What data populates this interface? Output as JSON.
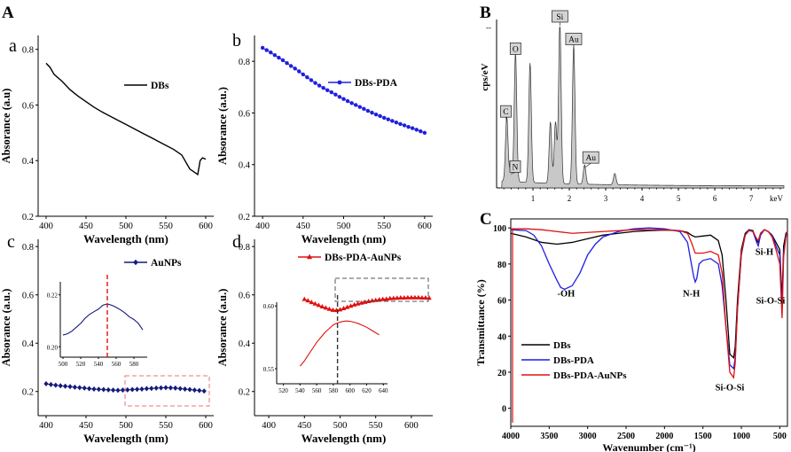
{
  "figure": {
    "panel_labels": {
      "A": "A",
      "B": "B",
      "C": "C"
    },
    "colors": {
      "black": "#000000",
      "blue": "#1f1fe0",
      "navy": "#141a7a",
      "red": "#e01010",
      "pink_dash": "#f07070",
      "gray_fill": "#c8c8c8",
      "gray_box": "#555555"
    }
  },
  "chart_data": [
    {
      "id": "a",
      "sublabel": "a",
      "type": "line",
      "xlabel": "Wavelength (nm)",
      "ylabel": "Absorance (a.u)",
      "xlim": [
        390,
        610
      ],
      "ylim": [
        0.2,
        0.85
      ],
      "xticks": [
        400,
        450,
        500,
        550,
        600
      ],
      "yticks": [
        0.2,
        0.4,
        0.6,
        0.8
      ],
      "series": [
        {
          "name": "DBs",
          "color": "#000000",
          "x": [
            400,
            405,
            410,
            420,
            430,
            440,
            450,
            460,
            470,
            480,
            490,
            500,
            510,
            520,
            530,
            540,
            550,
            560,
            570,
            580,
            590,
            593,
            596,
            600
          ],
          "y": [
            0.75,
            0.735,
            0.71,
            0.685,
            0.655,
            0.632,
            0.612,
            0.592,
            0.575,
            0.56,
            0.545,
            0.53,
            0.515,
            0.5,
            0.485,
            0.47,
            0.455,
            0.44,
            0.42,
            0.37,
            0.35,
            0.4,
            0.41,
            0.405
          ]
        }
      ]
    },
    {
      "id": "b",
      "sublabel": "b",
      "type": "line",
      "xlabel": "Wavelength (nm)",
      "ylabel": "Absorance (a.u.)",
      "xlim": [
        390,
        610
      ],
      "ylim": [
        0.2,
        0.9
      ],
      "xticks": [
        400,
        450,
        500,
        550,
        600
      ],
      "yticks": [
        0.2,
        0.4,
        0.6,
        0.8
      ],
      "series": [
        {
          "name": "DBs-PDA",
          "color": "#1f1fe0",
          "x": [
            400,
            405,
            410,
            415,
            420,
            425,
            430,
            435,
            440,
            445,
            450,
            455,
            460,
            465,
            470,
            475,
            480,
            485,
            490,
            495,
            500,
            505,
            510,
            515,
            520,
            525,
            530,
            535,
            540,
            545,
            550,
            555,
            560,
            565,
            570,
            575,
            580,
            585,
            590,
            595,
            600
          ],
          "y": [
            0.852,
            0.843,
            0.834,
            0.824,
            0.814,
            0.804,
            0.793,
            0.782,
            0.772,
            0.761,
            0.749,
            0.738,
            0.727,
            0.716,
            0.706,
            0.697,
            0.688,
            0.68,
            0.671,
            0.662,
            0.654,
            0.646,
            0.638,
            0.631,
            0.623,
            0.616,
            0.608,
            0.601,
            0.594,
            0.588,
            0.581,
            0.575,
            0.569,
            0.563,
            0.557,
            0.552,
            0.546,
            0.541,
            0.535,
            0.529,
            0.523
          ]
        }
      ]
    },
    {
      "id": "c",
      "sublabel": "c",
      "type": "line",
      "xlabel": "Wavelength (nm)",
      "ylabel": "Absorance (a.u.)",
      "xlim": [
        390,
        610
      ],
      "ylim": [
        0.1,
        0.83
      ],
      "xticks": [
        400,
        450,
        500,
        550,
        600
      ],
      "yticks": [
        0.2,
        0.4,
        0.6,
        0.8
      ],
      "series": [
        {
          "name": "AuNPs",
          "color": "#141a7a",
          "x": [
            400,
            406,
            412,
            418,
            424,
            430,
            436,
            442,
            448,
            454,
            460,
            466,
            472,
            478,
            484,
            490,
            496,
            502,
            508,
            514,
            520,
            526,
            532,
            538,
            544,
            550,
            556,
            562,
            568,
            574,
            580,
            586,
            592,
            598
          ],
          "y": [
            0.232,
            0.229,
            0.226,
            0.224,
            0.222,
            0.22,
            0.218,
            0.216,
            0.214,
            0.212,
            0.21,
            0.209,
            0.208,
            0.207,
            0.206,
            0.205,
            0.206,
            0.207,
            0.208,
            0.209,
            0.21,
            0.212,
            0.213,
            0.214,
            0.215,
            0.216,
            0.215,
            0.214,
            0.212,
            0.21,
            0.208,
            0.206,
            0.204,
            0.202
          ]
        }
      ],
      "inset": {
        "xticks": [
          500,
          520,
          540,
          560,
          580
        ],
        "yticks": [
          0.2,
          0.22
        ],
        "yticklabels": [
          "0.20",
          "0.22"
        ],
        "xlim": [
          497,
          595
        ],
        "ylim": [
          0.196,
          0.225
        ],
        "marker_x": 550,
        "x": [
          500,
          505,
          510,
          515,
          520,
          525,
          530,
          535,
          540,
          545,
          550,
          555,
          560,
          565,
          570,
          575,
          580,
          585,
          590
        ],
        "y": [
          0.2045,
          0.205,
          0.206,
          0.2075,
          0.209,
          0.211,
          0.2125,
          0.2135,
          0.2145,
          0.216,
          0.2165,
          0.216,
          0.2152,
          0.2142,
          0.213,
          0.2115,
          0.2105,
          0.209,
          0.2065
        ]
      }
    },
    {
      "id": "d",
      "sublabel": "d",
      "type": "line",
      "xlabel": "Wavelength (nm)",
      "ylabel": "Absorance (a.u.)",
      "xlim": [
        380,
        630
      ],
      "ylim": [
        0.1,
        0.83
      ],
      "xticks": [
        400,
        450,
        500,
        550,
        600
      ],
      "yticks": [
        0.2,
        0.4,
        0.6,
        0.8
      ],
      "series": [
        {
          "name": "DBs-PDA-AuNPs",
          "color": "#e01010",
          "x": [
            450,
            455,
            460,
            465,
            470,
            475,
            480,
            485,
            490,
            495,
            500,
            505,
            510,
            515,
            520,
            525,
            530,
            535,
            540,
            545,
            550,
            555,
            560,
            565,
            570,
            575,
            580,
            585,
            590,
            595,
            600,
            605,
            610,
            615,
            620,
            625
          ],
          "y": [
            0.582,
            0.576,
            0.569,
            0.563,
            0.557,
            0.551,
            0.546,
            0.541,
            0.537,
            0.536,
            0.539,
            0.544,
            0.549,
            0.554,
            0.559,
            0.563,
            0.567,
            0.57,
            0.573,
            0.576,
            0.578,
            0.58,
            0.582,
            0.583,
            0.585,
            0.586,
            0.587,
            0.588,
            0.588,
            0.589,
            0.589,
            0.589,
            0.589,
            0.588,
            0.588,
            0.587
          ]
        }
      ],
      "inset": {
        "xticks": [
          520,
          540,
          560,
          580,
          600,
          620,
          640
        ],
        "yticks": [
          0.55,
          0.6
        ],
        "yticklabels": [
          "0.55",
          "0.60"
        ],
        "xlim": [
          512,
          645
        ],
        "ylim": [
          0.538,
          0.603
        ],
        "marker_x": 585,
        "x": [
          540,
          545,
          550,
          555,
          560,
          565,
          570,
          575,
          580,
          585,
          590,
          595,
          600,
          605,
          610,
          615,
          620,
          625,
          630,
          635
        ],
        "y": [
          0.552,
          0.556,
          0.561,
          0.566,
          0.571,
          0.575,
          0.579,
          0.582,
          0.585,
          0.5865,
          0.5875,
          0.588,
          0.5878,
          0.587,
          0.586,
          0.5845,
          0.583,
          0.581,
          0.579,
          0.577
        ]
      }
    },
    {
      "id": "B",
      "type": "area",
      "ylabel": "cps/eV",
      "xunit": "keV",
      "xlim": [
        0,
        7.9
      ],
      "ylim": [
        0,
        100
      ],
      "xticks": [
        1,
        2,
        3,
        4,
        5,
        6,
        7
      ],
      "yaxis_label_top": "--",
      "peaks": [
        {
          "keV": 0.28,
          "height": 40
        },
        {
          "keV": 0.39,
          "height": 8
        },
        {
          "keV": 0.52,
          "height": 80
        },
        {
          "keV": 0.92,
          "height": 74
        },
        {
          "keV": 1.48,
          "height": 38
        },
        {
          "keV": 1.62,
          "height": 38
        },
        {
          "keV": 1.74,
          "height": 100
        },
        {
          "keV": 2.12,
          "height": 86
        },
        {
          "keV": 2.42,
          "height": 12
        },
        {
          "keV": 3.25,
          "height": 7
        }
      ],
      "element_labels": [
        {
          "label": "C",
          "keV": 0.28,
          "height": 40
        },
        {
          "label": "N",
          "keV": 0.39,
          "height": 8
        },
        {
          "label": "O",
          "keV": 0.52,
          "height": 80
        },
        {
          "label": "Si",
          "keV": 1.74,
          "height": 100
        },
        {
          "label": "Au",
          "keV": 2.12,
          "height": 86
        },
        {
          "label": "Au",
          "keV": 2.42,
          "height": 12
        }
      ]
    },
    {
      "id": "C",
      "type": "line",
      "xlabel": "Wavenumber (cm⁻¹)",
      "ylabel": "Transmittance (%)",
      "xlim": [
        4000,
        400
      ],
      "ylim": [
        -10,
        105
      ],
      "xticks": [
        4000,
        3500,
        3000,
        2500,
        2000,
        1500,
        1000,
        500
      ],
      "yticks": [
        0,
        20,
        40,
        60,
        80,
        100
      ],
      "annotations": [
        {
          "text": "-OH",
          "x": 3280,
          "y": 62
        },
        {
          "text": "N-H",
          "x": 1650,
          "y": 62
        },
        {
          "text": "Si-H",
          "x": 700,
          "y": 85
        },
        {
          "text": "Si-O-Si",
          "x": 620,
          "y": 58
        },
        {
          "text": "Si-O-Si",
          "x": 1150,
          "y": 10
        }
      ],
      "series": [
        {
          "name": "DBs",
          "color": "#000000",
          "x": [
            4000,
            3800,
            3600,
            3400,
            3300,
            3200,
            3000,
            2800,
            2600,
            2400,
            2200,
            2000,
            1800,
            1700,
            1650,
            1600,
            1500,
            1400,
            1300,
            1250,
            1200,
            1150,
            1100,
            1080,
            1050,
            1000,
            950,
            900,
            850,
            800,
            780,
            750,
            700,
            650,
            600,
            550,
            500,
            470,
            450,
            420,
            400
          ],
          "y": [
            97,
            95,
            92,
            91,
            91.5,
            92,
            94,
            96,
            97,
            98,
            98.5,
            98.8,
            98.5,
            97.5,
            96,
            95,
            95.5,
            96,
            93,
            85,
            60,
            30,
            28,
            34,
            60,
            88,
            97,
            99,
            98.5,
            93,
            92,
            97,
            99,
            98,
            96,
            92,
            88,
            60,
            90,
            97,
            98
          ]
        },
        {
          "name": "DBs-PDA",
          "color": "#1f1fe0",
          "x": [
            4000,
            3800,
            3700,
            3600,
            3500,
            3400,
            3350,
            3300,
            3200,
            3100,
            3000,
            2900,
            2800,
            2600,
            2400,
            2200,
            2000,
            1800,
            1700,
            1650,
            1620,
            1600,
            1580,
            1550,
            1500,
            1400,
            1300,
            1250,
            1200,
            1150,
            1100,
            1080,
            1050,
            1000,
            950,
            900,
            850,
            800,
            780,
            750,
            700,
            650,
            600,
            550,
            500,
            470,
            450,
            420,
            400
          ],
          "y": [
            99,
            98.5,
            96,
            90,
            80,
            71,
            67,
            66,
            68,
            75,
            85,
            91,
            95,
            98,
            99.5,
            100,
            99.5,
            98,
            92,
            80,
            73,
            70,
            72,
            80,
            82,
            83,
            80,
            68,
            45,
            24,
            22,
            28,
            55,
            85,
            96,
            99,
            98,
            92,
            90,
            96,
            99,
            98,
            96,
            90,
            85,
            55,
            86,
            96,
            98
          ]
        },
        {
          "name": "DBs-PDA-AuNPs",
          "color": "#e01010",
          "x": [
            4000,
            3800,
            3600,
            3400,
            3300,
            3200,
            3000,
            2800,
            2600,
            2400,
            2200,
            2000,
            1800,
            1700,
            1650,
            1600,
            1500,
            1400,
            1300,
            1250,
            1200,
            1150,
            1100,
            1080,
            1050,
            1000,
            950,
            900,
            850,
            800,
            780,
            750,
            700,
            650,
            600,
            550,
            500,
            470,
            450,
            420,
            400
          ],
          "y": [
            99.5,
            99.5,
            99,
            98,
            97.5,
            97,
            97.5,
            98,
            98.5,
            99,
            99,
            99,
            98.5,
            97,
            92,
            86,
            86,
            87,
            85,
            75,
            45,
            20,
            17,
            25,
            55,
            86,
            96,
            98.5,
            98,
            94,
            93,
            97,
            99,
            98,
            95,
            88,
            80,
            50,
            84,
            95,
            98
          ]
        }
      ]
    }
  ]
}
